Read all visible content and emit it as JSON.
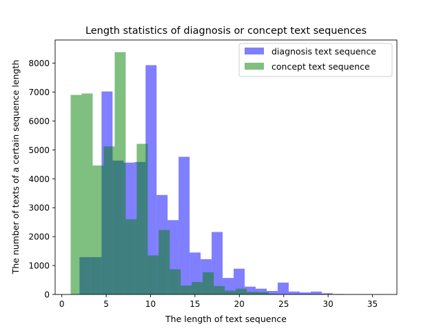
{
  "chart_data": {
    "type": "histogram",
    "title": "Length statistics of diagnosis or concept text sequences",
    "xlabel": "The length of text sequence",
    "ylabel": "The number of texts of a certain sequence length",
    "xlim": [
      -0.75,
      37.75
    ],
    "ylim": [
      0,
      8800
    ],
    "xticks": [
      0,
      5,
      10,
      15,
      20,
      25,
      30,
      35
    ],
    "yticks": [
      0,
      1000,
      2000,
      3000,
      4000,
      5000,
      6000,
      7000,
      8000
    ],
    "legend_position": "upper right",
    "alpha": 0.5,
    "series": [
      {
        "name": "diagnosis text sequence",
        "color": "#0000ff",
        "bins": [
          {
            "x0": 2.0,
            "x1": 3.24,
            "value": 1290
          },
          {
            "x0": 3.24,
            "x1": 4.48,
            "value": 1290
          },
          {
            "x0": 4.48,
            "x1": 5.72,
            "value": 7020
          },
          {
            "x0": 5.72,
            "x1": 6.96,
            "value": 4630
          },
          {
            "x0": 6.96,
            "x1": 8.2,
            "value": 4560
          },
          {
            "x0": 8.2,
            "x1": 9.44,
            "value": 4580
          },
          {
            "x0": 9.44,
            "x1": 10.68,
            "value": 7930
          },
          {
            "x0": 10.68,
            "x1": 11.92,
            "value": 3440
          },
          {
            "x0": 11.92,
            "x1": 13.16,
            "value": 2570
          },
          {
            "x0": 13.16,
            "x1": 14.4,
            "value": 4760
          },
          {
            "x0": 14.4,
            "x1": 15.64,
            "value": 1450
          },
          {
            "x0": 15.64,
            "x1": 16.88,
            "value": 1220
          },
          {
            "x0": 16.88,
            "x1": 18.12,
            "value": 2160
          },
          {
            "x0": 18.12,
            "x1": 19.36,
            "value": 570
          },
          {
            "x0": 19.36,
            "x1": 20.6,
            "value": 890
          },
          {
            "x0": 20.6,
            "x1": 21.84,
            "value": 270
          },
          {
            "x0": 21.84,
            "x1": 23.08,
            "value": 200
          },
          {
            "x0": 23.08,
            "x1": 24.32,
            "value": 120
          },
          {
            "x0": 24.32,
            "x1": 25.56,
            "value": 410
          },
          {
            "x0": 25.56,
            "x1": 26.8,
            "value": 100
          },
          {
            "x0": 26.8,
            "x1": 28.04,
            "value": 70
          },
          {
            "x0": 28.04,
            "x1": 29.28,
            "value": 100
          },
          {
            "x0": 29.28,
            "x1": 30.52,
            "value": 40
          },
          {
            "x0": 30.52,
            "x1": 31.76,
            "value": 15
          },
          {
            "x0": 31.76,
            "x1": 33.0,
            "value": 10
          },
          {
            "x0": 33.0,
            "x1": 34.24,
            "value": 5
          },
          {
            "x0": 34.24,
            "x1": 35.48,
            "value": 5
          },
          {
            "x0": 35.48,
            "x1": 36.72,
            "value": 5
          }
        ]
      },
      {
        "name": "concept text sequence",
        "color": "#008000",
        "bins": [
          {
            "x0": 1.0,
            "x1": 2.24,
            "value": 6900
          },
          {
            "x0": 2.24,
            "x1": 3.48,
            "value": 6950
          },
          {
            "x0": 3.48,
            "x1": 4.72,
            "value": 4460
          },
          {
            "x0": 4.72,
            "x1": 5.96,
            "value": 5120
          },
          {
            "x0": 5.96,
            "x1": 7.2,
            "value": 8380
          },
          {
            "x0": 7.2,
            "x1": 8.44,
            "value": 2600
          },
          {
            "x0": 8.44,
            "x1": 9.68,
            "value": 5210
          },
          {
            "x0": 9.68,
            "x1": 10.92,
            "value": 1350
          },
          {
            "x0": 10.92,
            "x1": 12.16,
            "value": 2230
          },
          {
            "x0": 12.16,
            "x1": 13.4,
            "value": 870
          },
          {
            "x0": 13.4,
            "x1": 14.64,
            "value": 310
          },
          {
            "x0": 14.64,
            "x1": 15.88,
            "value": 430
          },
          {
            "x0": 15.88,
            "x1": 17.12,
            "value": 770
          },
          {
            "x0": 17.12,
            "x1": 18.36,
            "value": 290
          },
          {
            "x0": 18.36,
            "x1": 19.6,
            "value": 130
          },
          {
            "x0": 19.6,
            "x1": 20.84,
            "value": 200
          },
          {
            "x0": 20.84,
            "x1": 22.08,
            "value": 90
          },
          {
            "x0": 22.08,
            "x1": 23.32,
            "value": 80
          },
          {
            "x0": 23.32,
            "x1": 24.56,
            "value": 20
          },
          {
            "x0": 24.56,
            "x1": 25.8,
            "value": 10
          }
        ]
      }
    ]
  }
}
